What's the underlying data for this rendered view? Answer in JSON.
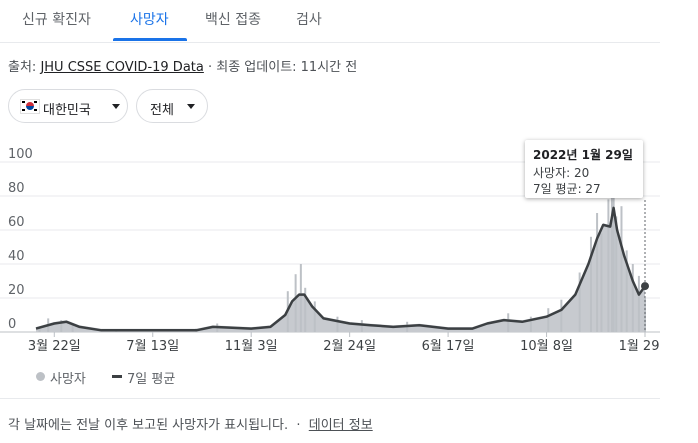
{
  "tabs": [
    {
      "label": "신규 확진자",
      "active": false
    },
    {
      "label": "사망자",
      "active": true
    },
    {
      "label": "백신 접종",
      "active": false
    },
    {
      "label": "검사",
      "active": false
    }
  ],
  "source": {
    "prefix": "출처: ",
    "link": "JHU CSSE COVID-19 Data",
    "suffix": " · 최종 업데이트: 11시간 전"
  },
  "filters": {
    "country": {
      "label": "대한민국",
      "icon": "south-korea-flag-icon"
    },
    "range": {
      "label": "전체"
    }
  },
  "tooltip": {
    "date": "2022년 1월 29일",
    "deaths_line": "사망자: 20",
    "avg_line": "7일 평균: 27"
  },
  "legend": {
    "deaths": "사망자",
    "avg": "7일 평균"
  },
  "footer": {
    "note": "각 날짜에는 전날 이후 보고된 사망자가 표시됩니다.",
    "dot": "·",
    "link": "데이터 정보"
  },
  "colors": {
    "accent": "#1a73e8",
    "bars": "#bdc1c6",
    "area": "#c7cacf",
    "avg_line": "#3c4043"
  },
  "chart_data": {
    "type": "bar",
    "ylim": [
      0,
      100
    ],
    "yticks": [
      0,
      20,
      40,
      60,
      80,
      100
    ],
    "xlim": [
      "2020-03-01",
      "2022-01-29"
    ],
    "xticks": [
      {
        "date": "2020-03-22",
        "label": "3월 22일"
      },
      {
        "date": "2020-07-13",
        "label": "7월 13일"
      },
      {
        "date": "2020-11-03",
        "label": "11월 3일"
      },
      {
        "date": "2021-02-24",
        "label": "2월 24일"
      },
      {
        "date": "2021-06-17",
        "label": "6월 17일"
      },
      {
        "date": "2021-10-08",
        "label": "10월 8일"
      },
      {
        "date": "2022-01-29",
        "label": "1월 29일"
      }
    ],
    "series": [
      {
        "name": "7일 평균",
        "type": "line",
        "points": [
          [
            "2020-03-01",
            2
          ],
          [
            "2020-03-22",
            5
          ],
          [
            "2020-04-05",
            6
          ],
          [
            "2020-04-20",
            3
          ],
          [
            "2020-05-15",
            1
          ],
          [
            "2020-07-13",
            1
          ],
          [
            "2020-09-01",
            1
          ],
          [
            "2020-09-20",
            3
          ],
          [
            "2020-11-03",
            2
          ],
          [
            "2020-11-25",
            3
          ],
          [
            "2020-12-12",
            10
          ],
          [
            "2020-12-20",
            18
          ],
          [
            "2020-12-28",
            22
          ],
          [
            "2021-01-03",
            22
          ],
          [
            "2021-01-12",
            15
          ],
          [
            "2021-01-25",
            8
          ],
          [
            "2021-02-24",
            5
          ],
          [
            "2021-03-20",
            4
          ],
          [
            "2021-04-15",
            3
          ],
          [
            "2021-05-15",
            4
          ],
          [
            "2021-06-17",
            2
          ],
          [
            "2021-07-15",
            2
          ],
          [
            "2021-08-01",
            5
          ],
          [
            "2021-08-20",
            7
          ],
          [
            "2021-09-10",
            6
          ],
          [
            "2021-10-08",
            9
          ],
          [
            "2021-10-25",
            13
          ],
          [
            "2021-11-10",
            22
          ],
          [
            "2021-11-25",
            40
          ],
          [
            "2021-12-05",
            55
          ],
          [
            "2021-12-12",
            63
          ],
          [
            "2021-12-20",
            62
          ],
          [
            "2021-12-24",
            73
          ],
          [
            "2021-12-28",
            60
          ],
          [
            "2022-01-05",
            45
          ],
          [
            "2022-01-15",
            30
          ],
          [
            "2022-01-22",
            22
          ],
          [
            "2022-01-29",
            27
          ]
        ]
      },
      {
        "name": "사망자",
        "type": "bar",
        "points": [
          [
            "2020-03-05",
            3
          ],
          [
            "2020-03-15",
            8
          ],
          [
            "2020-03-30",
            7
          ],
          [
            "2020-04-12",
            5
          ],
          [
            "2020-06-01",
            1
          ],
          [
            "2020-09-01",
            2
          ],
          [
            "2020-09-25",
            5
          ],
          [
            "2020-12-15",
            24
          ],
          [
            "2020-12-24",
            34
          ],
          [
            "2020-12-30",
            40
          ],
          [
            "2021-01-04",
            26
          ],
          [
            "2021-01-15",
            18
          ],
          [
            "2021-02-10",
            9
          ],
          [
            "2021-03-10",
            7
          ],
          [
            "2021-05-01",
            6
          ],
          [
            "2021-08-25",
            11
          ],
          [
            "2021-09-20",
            9
          ],
          [
            "2021-10-10",
            14
          ],
          [
            "2021-10-25",
            19
          ],
          [
            "2021-11-15",
            35
          ],
          [
            "2021-11-28",
            56
          ],
          [
            "2021-12-05",
            70
          ],
          [
            "2021-12-10",
            58
          ],
          [
            "2021-12-18",
            78
          ],
          [
            "2021-12-22",
            94
          ],
          [
            "2021-12-24",
            109
          ],
          [
            "2021-12-27",
            68
          ],
          [
            "2022-01-02",
            74
          ],
          [
            "2022-01-08",
            48
          ],
          [
            "2022-01-15",
            40
          ],
          [
            "2022-01-22",
            33
          ],
          [
            "2022-01-29",
            20
          ]
        ]
      }
    ],
    "highlight": {
      "date": "2022-01-29",
      "deaths": 20,
      "avg": 27
    }
  }
}
